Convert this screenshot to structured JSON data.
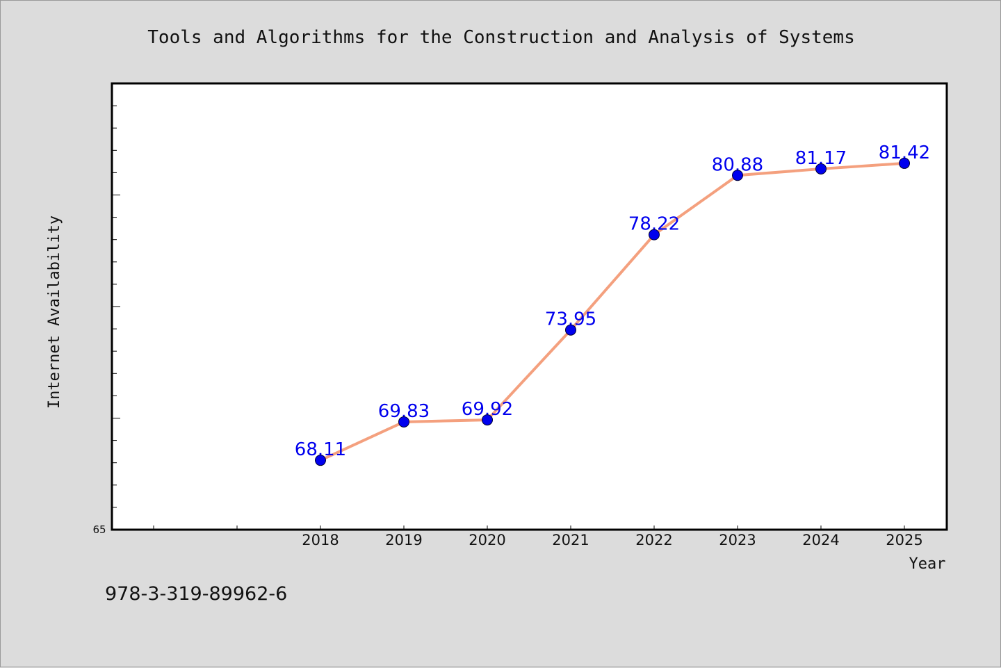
{
  "chart_data": {
    "type": "line",
    "title": "Tools and Algorithms for the Construction and Analysis of Systems",
    "xlabel": "Year",
    "ylabel": "Internet Availability",
    "categories": [
      "2018",
      "2019",
      "2020",
      "2021",
      "2022",
      "2023",
      "2024",
      "2025"
    ],
    "series": [
      {
        "values": [
          68.11,
          69.83,
          69.92,
          73.95,
          78.22,
          80.88,
          81.17,
          81.42
        ],
        "labels": [
          "68.11",
          "69.83",
          "69.92",
          "73.95",
          "78.22",
          "80.88",
          "81.17",
          "81.42"
        ]
      }
    ],
    "ylim": [
      65,
      85
    ],
    "y_min_label": "65",
    "grid": false,
    "line_color": "#f4a07e",
    "marker_color": "#0000ee",
    "label_color": "#0000ee",
    "background_color": "#dcdcdc",
    "plot_background_color": "#ffffff"
  },
  "footer": {
    "isbn": "978-3-319-89962-6"
  }
}
